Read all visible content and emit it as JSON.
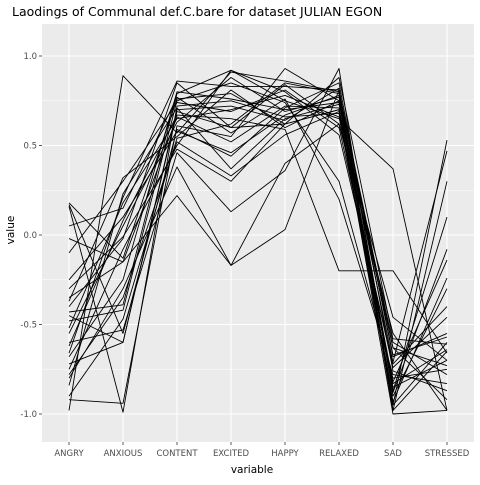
{
  "chart_data": {
    "type": "line",
    "title": "Laodings of Communal def.C.bare for dataset JULIAN EGON",
    "xlabel": "variable",
    "ylabel": "value",
    "categories": [
      "ANGRY",
      "ANXIOUS",
      "CONTENT",
      "EXCITED",
      "HAPPY",
      "RELAXED",
      "SAD",
      "STRESSED"
    ],
    "ylim": [
      -1.0,
      1.0
    ],
    "yticks": [
      -1.0,
      -0.5,
      0.0,
      0.5,
      1.0
    ],
    "ytick_labels": [
      "-1.0",
      "-0.5",
      "0.0",
      "0.5",
      "1.0"
    ],
    "grid": true,
    "legend": "none",
    "colors": {
      "panel": "#ebebeb",
      "grid_major": "#ffffff",
      "line": "#000000"
    },
    "series": [
      {
        "values": [
          0.18,
          -0.13,
          0.76,
          0.79,
          0.62,
          0.7,
          -1.0,
          -0.98
        ]
      },
      {
        "values": [
          -0.02,
          -0.15,
          0.22,
          -0.17,
          0.03,
          0.81,
          -0.68,
          -0.55
        ]
      },
      {
        "values": [
          -0.98,
          0.89,
          0.57,
          0.91,
          0.86,
          0.8,
          -0.63,
          -0.73
        ]
      },
      {
        "values": [
          -0.92,
          -0.94,
          0.61,
          0.55,
          0.93,
          0.75,
          -0.87,
          0.1
        ]
      },
      {
        "values": [
          -0.37,
          0.32,
          0.55,
          0.81,
          0.6,
          0.75,
          -0.95,
          0.53
        ]
      },
      {
        "values": [
          -0.72,
          -0.6,
          0.69,
          0.6,
          0.84,
          0.62,
          -0.55,
          -0.98
        ]
      },
      {
        "values": [
          -0.43,
          -0.39,
          0.79,
          0.92,
          0.75,
          0.65,
          0.37,
          -0.98
        ]
      },
      {
        "values": [
          -0.84,
          0.23,
          0.71,
          0.37,
          0.65,
          0.73,
          -0.6,
          -0.78
        ]
      },
      {
        "values": [
          0.16,
          -0.99,
          0.72,
          0.75,
          0.66,
          0.68,
          -0.83,
          -0.64
        ]
      },
      {
        "values": [
          -0.6,
          -0.53,
          0.46,
          0.13,
          0.36,
          0.93,
          -0.98,
          -0.65
        ]
      },
      {
        "values": [
          -0.75,
          -0.08,
          0.5,
          0.92,
          0.8,
          0.56,
          -0.72,
          -0.4
        ]
      },
      {
        "values": [
          -0.4,
          -0.02,
          0.85,
          0.6,
          0.62,
          0.7,
          -0.63,
          -0.92
        ]
      },
      {
        "values": [
          -0.52,
          0.18,
          0.65,
          0.7,
          0.78,
          0.66,
          -0.9,
          -0.3
        ]
      },
      {
        "values": [
          -0.35,
          -0.15,
          0.66,
          0.52,
          0.72,
          0.71,
          -0.82,
          -0.14
        ]
      },
      {
        "values": [
          -0.8,
          -0.3,
          0.38,
          -0.17,
          0.4,
          0.62,
          -0.46,
          -0.7
        ]
      },
      {
        "values": [
          0.17,
          -0.55,
          0.59,
          0.44,
          0.71,
          0.85,
          -0.76,
          -0.87
        ]
      },
      {
        "values": [
          -0.3,
          -0.01,
          0.48,
          0.3,
          0.62,
          0.88,
          -0.58,
          -0.61
        ]
      },
      {
        "values": [
          -0.62,
          0.08,
          0.67,
          0.65,
          0.59,
          -0.2,
          -0.2,
          -0.66
        ]
      },
      {
        "values": [
          -0.66,
          0.21,
          0.86,
          0.83,
          0.83,
          0.81,
          -0.98,
          0.3
        ]
      },
      {
        "values": [
          -0.48,
          -0.42,
          0.75,
          0.85,
          0.74,
          0.3,
          -0.8,
          -0.75
        ]
      },
      {
        "values": [
          -0.25,
          0.1,
          0.58,
          0.46,
          0.67,
          0.78,
          -0.88,
          -0.08
        ]
      },
      {
        "values": [
          -0.68,
          -0.25,
          0.8,
          0.76,
          0.7,
          0.74,
          -0.71,
          0.47
        ]
      },
      {
        "values": [
          -0.55,
          0.05,
          0.63,
          0.88,
          0.69,
          0.77,
          -0.93,
          -0.24
        ]
      },
      {
        "values": [
          -0.9,
          -0.47,
          0.54,
          0.62,
          0.85,
          0.79,
          -0.67,
          -0.57
        ]
      },
      {
        "values": [
          -0.1,
          0.3,
          0.74,
          0.69,
          0.81,
          0.6,
          -0.74,
          -0.46
        ]
      },
      {
        "values": [
          -0.45,
          -0.6,
          0.7,
          0.72,
          0.64,
          0.82,
          -0.85,
          -0.7
        ]
      },
      {
        "values": [
          0.05,
          0.15,
          0.77,
          0.57,
          0.76,
          0.2,
          -0.78,
          -0.83
        ]
      },
      {
        "values": [
          -0.78,
          -0.35,
          0.52,
          0.33,
          0.56,
          0.69,
          -0.95,
          -0.6
        ]
      }
    ]
  }
}
